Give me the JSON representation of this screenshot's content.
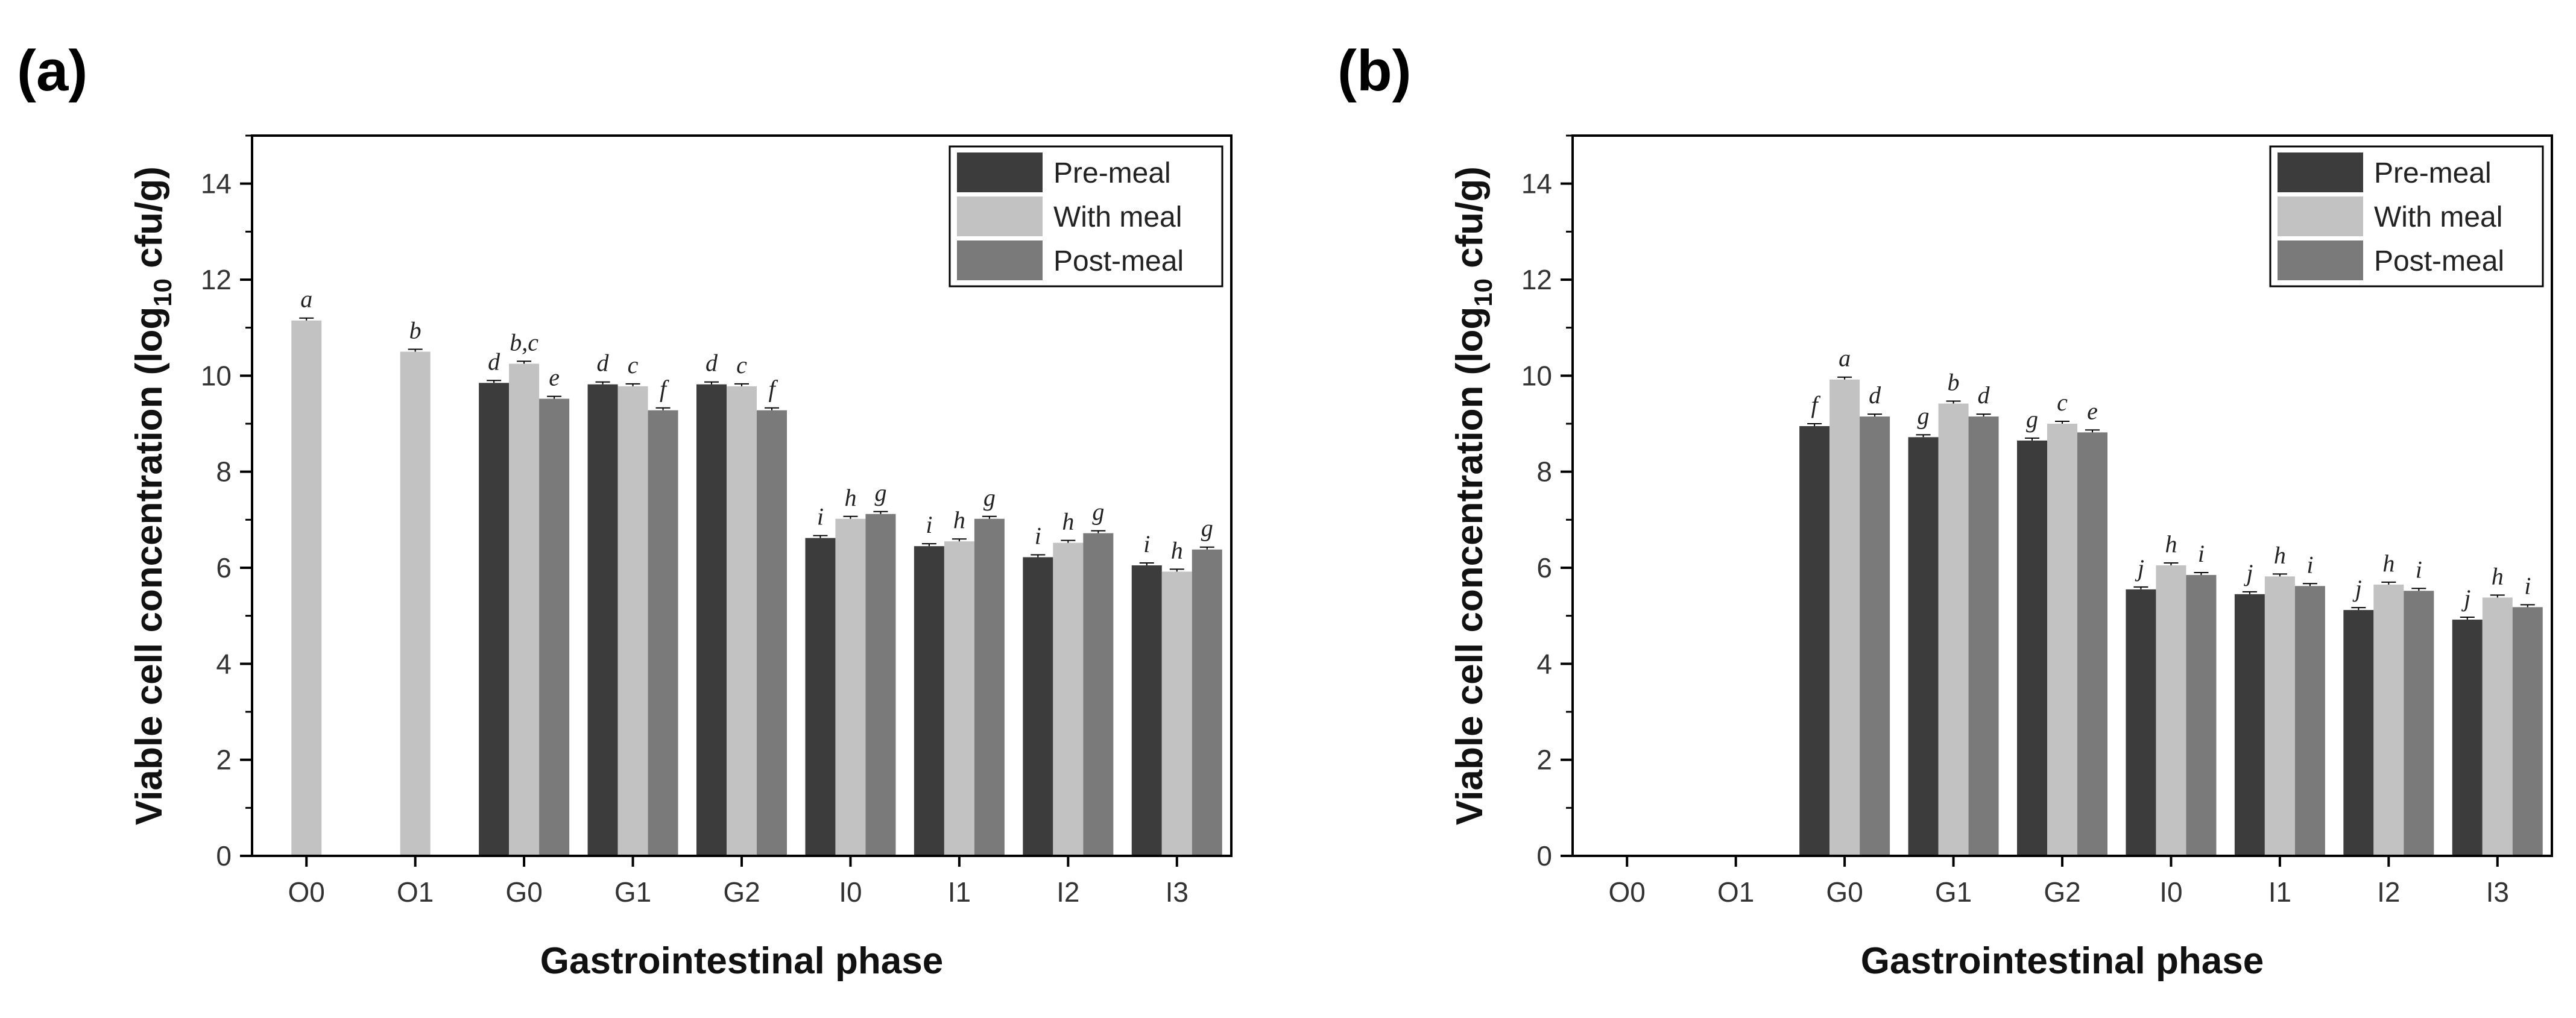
{
  "panel_labels": [
    "(a)",
    "(b)"
  ],
  "chart_data": [
    {
      "type": "bar",
      "panel": "(a)",
      "title": "",
      "xlabel": "Gastrointestinal phase",
      "ylabel_main": "Viable cell concentration (log",
      "ylabel_sub": "10",
      "ylabel_end": " cfu/g)",
      "ylim": [
        0,
        15
      ],
      "yticks": [
        0,
        2,
        4,
        6,
        8,
        10,
        12,
        14
      ],
      "categories": [
        "O0",
        "O1",
        "G0",
        "G1",
        "G2",
        "I0",
        "I1",
        "I2",
        "I3"
      ],
      "legend_position": "top-right",
      "series": [
        {
          "name": "Pre-meal",
          "color": "#3c3c3c",
          "values": [
            null,
            null,
            9.85,
            9.82,
            9.82,
            6.62,
            6.45,
            6.22,
            6.05
          ],
          "errors": [
            null,
            null,
            0.05,
            0.05,
            0.05,
            0.05,
            0.05,
            0.05,
            0.05
          ],
          "labels": [
            "",
            "",
            "d",
            "d",
            "d",
            "i",
            "i",
            "i",
            "i"
          ]
        },
        {
          "name": "With meal",
          "color": "#c2c2c2",
          "values": [
            11.15,
            10.5,
            10.25,
            9.78,
            9.78,
            7.02,
            6.55,
            6.52,
            5.92
          ],
          "errors": [
            0.05,
            0.05,
            0.05,
            0.05,
            0.05,
            0.05,
            0.05,
            0.05,
            0.05
          ],
          "labels": [
            "a",
            "b",
            "b,c",
            "c",
            "c",
            "h",
            "h",
            "h",
            "h"
          ]
        },
        {
          "name": "Post-meal",
          "color": "#7a7a7a",
          "values": [
            null,
            null,
            9.52,
            9.28,
            9.28,
            7.12,
            7.02,
            6.72,
            6.38
          ],
          "errors": [
            null,
            null,
            0.05,
            0.05,
            0.05,
            0.05,
            0.05,
            0.05,
            0.05
          ],
          "labels": [
            "",
            "",
            "e",
            "f",
            "f",
            "g",
            "g",
            "g",
            "g"
          ]
        }
      ]
    },
    {
      "type": "bar",
      "panel": "(b)",
      "title": "",
      "xlabel": "Gastrointestinal phase",
      "ylabel_main": "Viable cell concentration (log",
      "ylabel_sub": "10",
      "ylabel_end": " cfu/g)",
      "ylim": [
        0,
        15
      ],
      "yticks": [
        0,
        2,
        4,
        6,
        8,
        10,
        12,
        14
      ],
      "categories": [
        "O0",
        "O1",
        "G0",
        "G1",
        "G2",
        "I0",
        "I1",
        "I2",
        "I3"
      ],
      "legend_position": "top-right",
      "series": [
        {
          "name": "Pre-meal",
          "color": "#3c3c3c",
          "values": [
            null,
            null,
            8.95,
            8.72,
            8.65,
            5.55,
            5.45,
            5.12,
            4.92
          ],
          "errors": [
            null,
            null,
            0.05,
            0.05,
            0.05,
            0.05,
            0.05,
            0.05,
            0.05
          ],
          "labels": [
            "",
            "",
            "f",
            "g",
            "g",
            "j",
            "j",
            "j",
            "j"
          ]
        },
        {
          "name": "With meal",
          "color": "#c2c2c2",
          "values": [
            null,
            null,
            9.92,
            9.42,
            9.0,
            6.05,
            5.82,
            5.65,
            5.38
          ],
          "errors": [
            null,
            null,
            0.05,
            0.05,
            0.05,
            0.05,
            0.05,
            0.05,
            0.05
          ],
          "labels": [
            "",
            "",
            "a",
            "b",
            "c",
            "h",
            "h",
            "h",
            "h"
          ]
        },
        {
          "name": "Post-meal",
          "color": "#7a7a7a",
          "values": [
            null,
            null,
            9.15,
            9.15,
            8.82,
            5.85,
            5.62,
            5.52,
            5.18
          ],
          "errors": [
            null,
            null,
            0.05,
            0.05,
            0.05,
            0.05,
            0.05,
            0.05,
            0.05
          ],
          "labels": [
            "",
            "",
            "d",
            "d",
            "e",
            "i",
            "i",
            "i",
            "i"
          ]
        }
      ]
    }
  ]
}
